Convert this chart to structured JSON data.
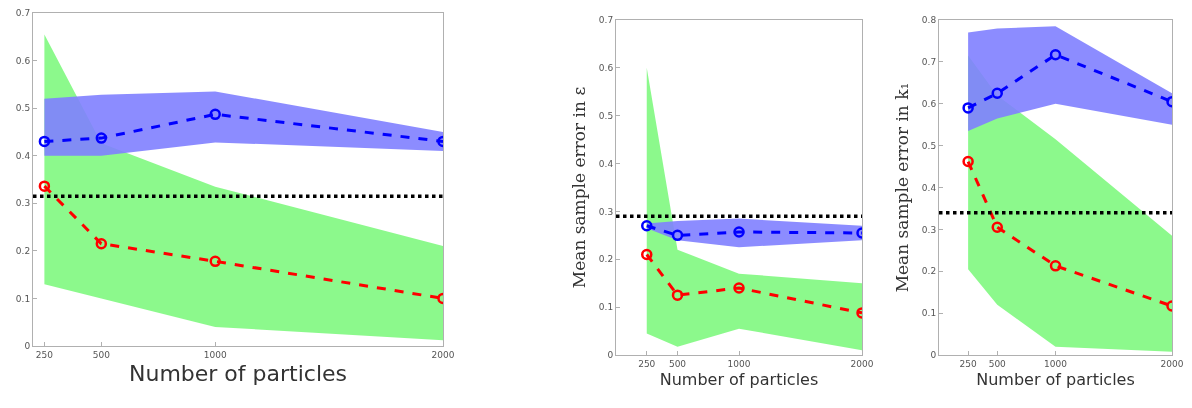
{
  "chart_data": [
    {
      "type": "line",
      "xlabel": "Number of particles",
      "x": [
        250,
        500,
        1000,
        2000
      ],
      "xlim": [
        200,
        2000
      ],
      "xticks": [
        250,
        500,
        1000,
        2000
      ],
      "ylim": [
        0,
        0.7
      ],
      "yticks": [
        0,
        0.1,
        0.2,
        0.3,
        0.4,
        0.5,
        0.6,
        0.7
      ],
      "marker": "circle",
      "line_style": "dashed",
      "series": [
        {
          "color": "#80f880",
          "values": [
            null,
            null,
            null,
            null
          ],
          "lower": [
            0.13,
            0.1,
            0.04,
            0.012
          ],
          "upper": [
            0.655,
            0.426,
            0.335,
            0.21
          ]
        },
        {
          "color": "#0000ff",
          "values": [
            0.43,
            0.437,
            0.487,
            0.43
          ],
          "lower": [
            0.4,
            0.4,
            0.428,
            0.41
          ],
          "upper": [
            0.52,
            0.528,
            0.535,
            0.45
          ]
        },
        {
          "color": "#ff0000",
          "values": [
            0.336,
            0.215,
            0.178,
            0.1
          ]
        }
      ],
      "ref_lines": [
        {
          "axis": "y",
          "value": 0.315,
          "color": "#000000",
          "line_style": "dotted"
        }
      ]
    },
    {
      "type": "line",
      "xlabel": "Number of particles",
      "ylabel": "Mean sample error in ε",
      "x": [
        250,
        500,
        1000,
        2000
      ],
      "xlim": [
        0,
        2000
      ],
      "xticks": [
        250,
        500,
        1000,
        2000
      ],
      "ylim": [
        0,
        0.7
      ],
      "yticks": [
        0,
        0.1,
        0.2,
        0.3,
        0.4,
        0.5,
        0.6,
        0.7
      ],
      "marker": "circle",
      "line_style": "dashed",
      "series": [
        {
          "color": "#80f880",
          "values": [
            null,
            null,
            null,
            null
          ],
          "lower": [
            0.045,
            0.017,
            0.055,
            0.01
          ],
          "upper": [
            0.6,
            0.22,
            0.17,
            0.15
          ]
        },
        {
          "color": "#0000ff",
          "values": [
            0.27,
            0.25,
            0.257,
            0.255
          ],
          "lower": [
            0.265,
            0.24,
            0.225,
            0.24
          ],
          "upper": [
            0.275,
            0.28,
            0.285,
            0.27
          ]
        },
        {
          "color": "#ff0000",
          "values": [
            0.21,
            0.125,
            0.14,
            0.088
          ]
        }
      ],
      "ref_lines": [
        {
          "axis": "y",
          "value": 0.29,
          "color": "#000000",
          "line_style": "dotted"
        }
      ]
    },
    {
      "type": "line",
      "xlabel": "Number of particles",
      "ylabel": "Mean sample error in k₁",
      "x": [
        250,
        500,
        1000,
        2000
      ],
      "xlim": [
        0,
        2000
      ],
      "xticks": [
        250,
        500,
        1000,
        2000
      ],
      "ylim": [
        0,
        0.8
      ],
      "yticks": [
        0,
        0.1,
        0.2,
        0.3,
        0.4,
        0.5,
        0.6,
        0.7,
        0.8
      ],
      "marker": "circle",
      "line_style": "dashed",
      "series": [
        {
          "color": "#80f880",
          "values": [
            null,
            null,
            null,
            null
          ],
          "lower": [
            0.205,
            0.12,
            0.02,
            0.008
          ],
          "upper": [
            0.715,
            0.62,
            0.515,
            0.285
          ]
        },
        {
          "color": "#0000ff",
          "values": [
            0.59,
            0.625,
            0.717,
            0.605
          ],
          "lower": [
            0.535,
            0.565,
            0.6,
            0.55
          ],
          "upper": [
            0.77,
            0.78,
            0.785,
            0.625
          ]
        },
        {
          "color": "#ff0000",
          "values": [
            0.462,
            0.305,
            0.213,
            0.117
          ]
        }
      ],
      "ref_lines": [
        {
          "axis": "y",
          "value": 0.34,
          "color": "#000000",
          "line_style": "dotted"
        }
      ]
    }
  ]
}
